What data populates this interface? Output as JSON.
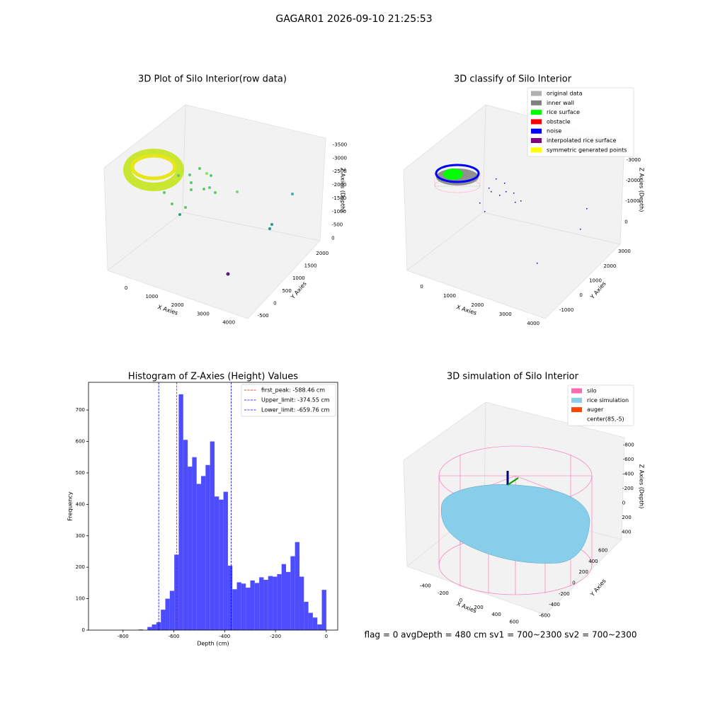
{
  "title": "GAGAR01 2026-09-10 21:25:53",
  "footer": "flag = 0     avgDepth = 480 cm  sv1 = 700~2300  sv2 = 700~2300",
  "chart_data": [
    {
      "type": "scatter3d",
      "title": "3D Plot of Silo Interior(row data)",
      "xlabel": "X Axies",
      "ylabel": "Y Axies",
      "zlabel": "Z Axies (Depth)",
      "xlim": [
        -500,
        4300
      ],
      "xticks": [
        0,
        1000,
        2000,
        3000,
        4000
      ],
      "ylim": [
        -700,
        2200
      ],
      "yticks": [
        -500,
        0,
        500,
        1000,
        1500,
        2000
      ],
      "zlim": [
        -3700,
        200
      ],
      "zticks": [
        0,
        -500,
        -1000,
        -1500,
        -2000,
        -2500,
        -3000,
        -3500
      ]
    },
    {
      "type": "scatter3d",
      "title": "3D classify of Silo Interior",
      "xlabel": "X Axies",
      "ylabel": "Y Axies",
      "zlabel": "Z Axies (Depth)",
      "xlim": [
        -600,
        4300
      ],
      "xticks": [
        0,
        1000,
        2000,
        3000,
        4000
      ],
      "ylim": [
        -1300,
        3200
      ],
      "yticks": [
        -1000,
        0,
        1000,
        2000,
        3000
      ],
      "zlim": [
        -3300,
        300
      ],
      "zticks": [
        0,
        -1000,
        -2000,
        -3000
      ],
      "legend": [
        {
          "name": "original data",
          "color": "#b0b0b0"
        },
        {
          "name": "inner wall",
          "color": "#808080"
        },
        {
          "name": "rice surface",
          "color": "#00ff00"
        },
        {
          "name": "obstacle",
          "color": "#ff0000"
        },
        {
          "name": "noise",
          "color": "#0000ff"
        },
        {
          "name": "interpolated rice surface",
          "color": "#800080"
        },
        {
          "name": "symmetric generated points",
          "color": "#ffff00"
        }
      ]
    },
    {
      "type": "histogram",
      "title": "Histogram of Z-Axies (Height) Values",
      "xlabel": "Depth (cm)",
      "ylabel": "Frequency",
      "color": "#4d4dff",
      "bins": [
        -880,
        -862.4,
        -844.8,
        -827.2,
        -809.6,
        -792,
        -774.4,
        -756.8,
        -739.2,
        -721.6,
        -704,
        -686.4,
        -668.8,
        -651.2,
        -633.6,
        -616,
        -598.4,
        -580.8,
        -563.2,
        -545.6,
        -528,
        -510.4,
        -492.8,
        -475.2,
        -457.6,
        -440,
        -422.4,
        -404.8,
        -387.2,
        -369.6,
        -352,
        -334.4,
        -316.8,
        -299.2,
        -281.6,
        -264,
        -246.4,
        -228.8,
        -211.2,
        -193.6,
        -176,
        -158.4,
        -140.8,
        -123.2,
        -105.6,
        -88,
        -70.4,
        -52.8,
        -35.2,
        -17.6,
        0
      ],
      "counts": [
        0,
        0,
        0,
        0,
        1,
        0,
        0,
        0,
        2,
        0,
        10,
        18,
        25,
        65,
        100,
        125,
        240,
        750,
        605,
        520,
        550,
        465,
        490,
        525,
        600,
        425,
        415,
        440,
        205,
        130,
        152,
        148,
        135,
        158,
        150,
        168,
        160,
        172,
        170,
        178,
        210,
        185,
        235,
        280,
        170,
        90,
        55,
        40,
        18,
        128
      ],
      "xlim": [
        -936,
        45
      ],
      "xticks": [
        -800,
        -600,
        -400,
        -200,
        0
      ],
      "ylim": [
        0,
        788
      ],
      "yticks": [
        0,
        100,
        200,
        300,
        400,
        500,
        600,
        700
      ],
      "vlines": [
        {
          "label": "first_peak: -588.46 cm",
          "value": -588.46,
          "color": "#ff0000"
        },
        {
          "label": "Upper_limit: -374.55 cm",
          "value": -374.55,
          "color": "#0000ff"
        },
        {
          "label": "Lower_limit: -659.76 cm",
          "value": -659.76,
          "color": "#0000ff"
        }
      ],
      "legend_position": "upper right"
    },
    {
      "type": "surface3d",
      "title": "3D simulation of Silo Interior",
      "xlabel": "X Axies",
      "ylabel": "Y Axies",
      "zlabel": "Z Axies (Depth)",
      "xlim": [
        -550,
        750
      ],
      "xticks": [
        -400,
        -200,
        0,
        200,
        400,
        600
      ],
      "ylim": [
        -750,
        750
      ],
      "yticks": [
        -600,
        -400,
        -200,
        0,
        200,
        400,
        600
      ],
      "zlim": [
        -900,
        500
      ],
      "zticks": [
        400,
        200,
        0,
        -200,
        -400,
        -600,
        -800
      ],
      "legend": [
        {
          "name": "silo",
          "color": "#ff69b4"
        },
        {
          "name": "rice simulation",
          "color": "#87ceeb"
        },
        {
          "name": "auger",
          "color": "#ff4500"
        },
        {
          "name": "center(85,-5)",
          "color": "#ffffff"
        }
      ]
    }
  ]
}
